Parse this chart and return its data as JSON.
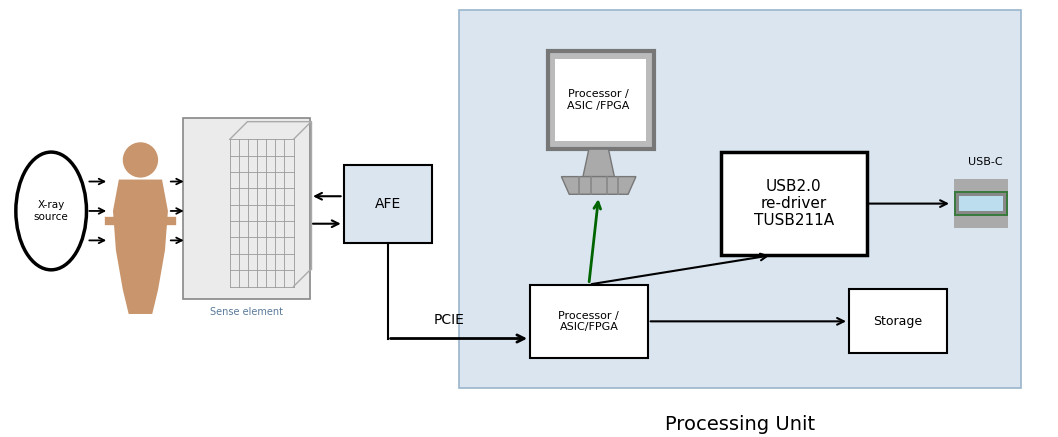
{
  "fig_width": 10.58,
  "fig_height": 4.37,
  "bg_color": "#ffffff",
  "processing_unit_bg": "#dae5f0",
  "processing_unit_label": "Processing Unit",
  "xray_label": "X-ray\nsource",
  "sense_element_label": "Sense element",
  "afe_label": "AFE",
  "proc_top_label": "Processor /\nASIC /FPGA",
  "proc_bot_label": "Processor /\nASIC/FPGA",
  "usb_label": "USB2.0\nre-driver\nTUSB211A",
  "storage_label": "Storage",
  "usbc_label": "USB-C",
  "pcie_label": "PCIE"
}
